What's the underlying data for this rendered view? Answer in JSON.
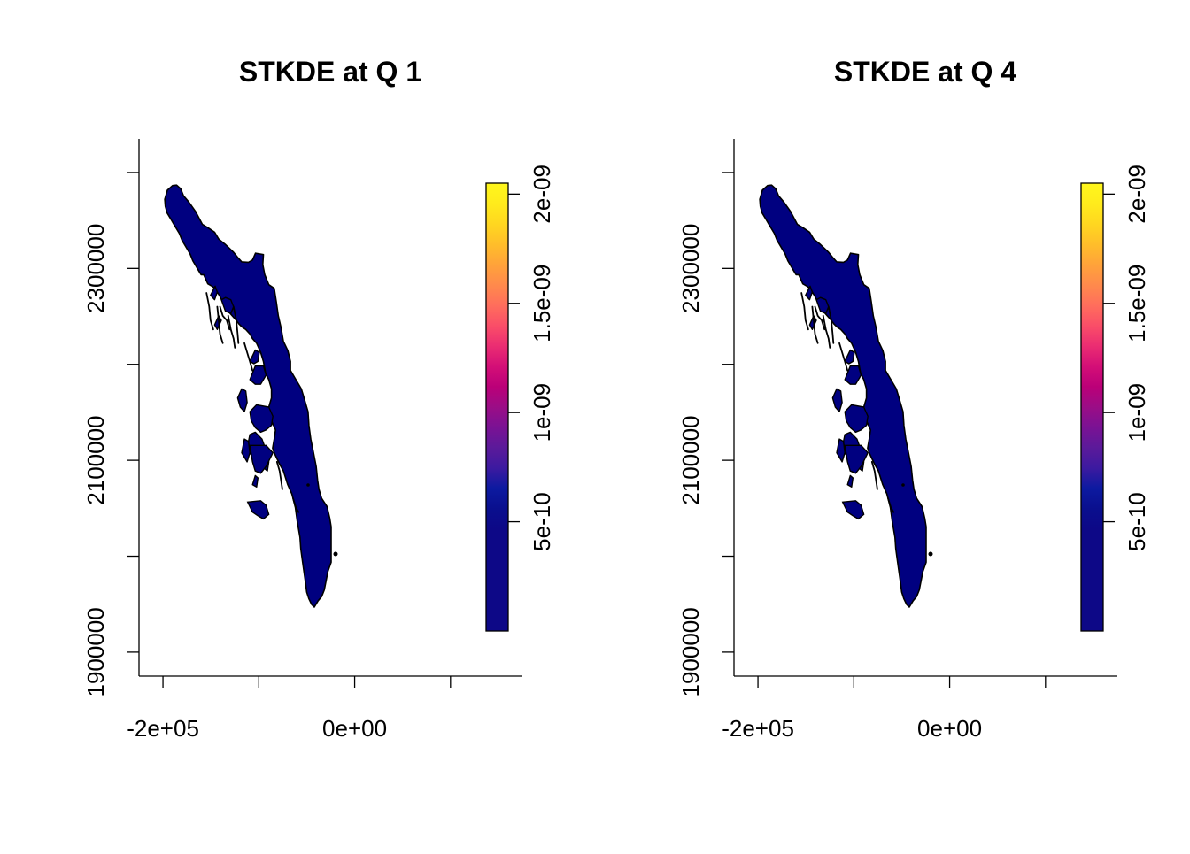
{
  "chart_data": [
    {
      "type": "heatmap",
      "title": "STKDE at Q 1",
      "x_ticks": [
        -200000,
        -100000,
        0,
        100000
      ],
      "x_tick_labels": [
        "-2e+05",
        "",
        "0e+00",
        ""
      ],
      "y_ticks": [
        1900000,
        2000000,
        2100000,
        2200000,
        2300000,
        2400000
      ],
      "y_tick_labels": [
        "1900000",
        "",
        "2100000",
        "",
        "2300000",
        ""
      ],
      "xlim": [
        -225000,
        175000
      ],
      "ylim": [
        1875000,
        2435000
      ],
      "legend": {
        "placement": "right",
        "range": [
          0,
          2.05e-09
        ],
        "ticks": [
          5e-10,
          1e-09,
          1.5e-09,
          2e-09
        ],
        "tick_labels": [
          "5e-10",
          "1e-09",
          "1.5e-09",
          "2e-09"
        ],
        "colors": [
          "#0D0887",
          "#0D0887",
          "#0D0887",
          "#0D0887",
          "#0D0887",
          "#0D0887",
          "#0A0F8E",
          "#0C1AA0",
          "#3C1AA0",
          "#5B1A9A",
          "#7A1294",
          "#9B0D86",
          "#BB0078",
          "#D40F77",
          "#EB2D72",
          "#FA4E68",
          "#FF6E5C",
          "#FF8A4C",
          "#FFA33A",
          "#FFBE2A",
          "#FFD720",
          "#FFEB1C",
          "#FFF71C"
        ]
      },
      "region_color": "#000080",
      "region_value_level": "low"
    },
    {
      "type": "heatmap",
      "title": "STKDE at Q 4",
      "x_ticks": [
        -200000,
        -100000,
        0,
        100000
      ],
      "x_tick_labels": [
        "-2e+05",
        "",
        "0e+00",
        ""
      ],
      "y_ticks": [
        1900000,
        2000000,
        2100000,
        2200000,
        2300000,
        2400000
      ],
      "y_tick_labels": [
        "1900000",
        "",
        "2100000",
        "",
        "2300000",
        ""
      ],
      "xlim": [
        -225000,
        175000
      ],
      "ylim": [
        1875000,
        2435000
      ],
      "legend": {
        "placement": "right",
        "range": [
          0,
          2.05e-09
        ],
        "ticks": [
          5e-10,
          1e-09,
          1.5e-09,
          2e-09
        ],
        "tick_labels": [
          "5e-10",
          "1e-09",
          "1.5e-09",
          "2e-09"
        ],
        "colors": [
          "#0D0887",
          "#0D0887",
          "#0D0887",
          "#0D0887",
          "#0D0887",
          "#0D0887",
          "#0A0F8E",
          "#0C1AA0",
          "#3C1AA0",
          "#5B1A9A",
          "#7A1294",
          "#9B0D86",
          "#BB0078",
          "#D40F77",
          "#EB2D72",
          "#FA4E68",
          "#FF6E5C",
          "#FF8A4C",
          "#FFA33A",
          "#FFBE2A",
          "#FFD720",
          "#FFEB1C",
          "#FFF71C"
        ]
      },
      "region_color": "#000080",
      "region_value_level": "low"
    }
  ]
}
